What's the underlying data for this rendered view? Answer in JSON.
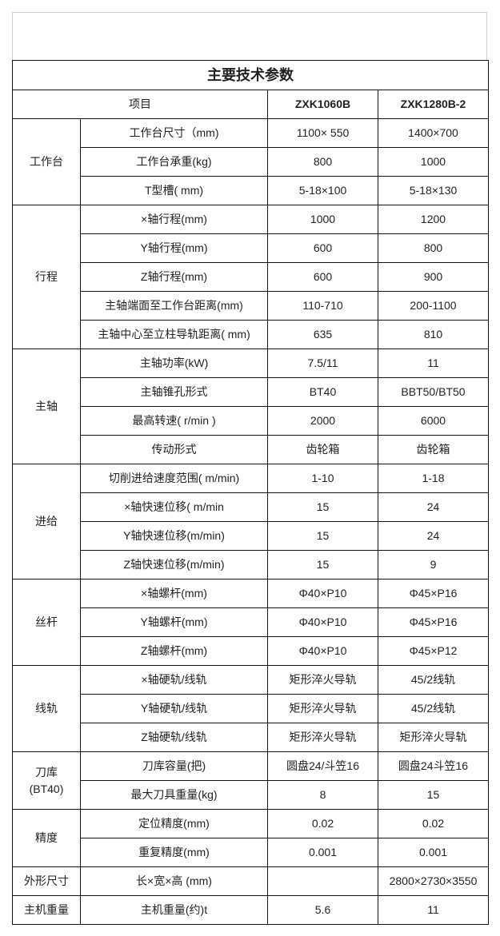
{
  "title": "主要技术参数",
  "header": {
    "item": "项目",
    "model1": "ZXK1060B",
    "model2": "ZXK1280B-2"
  },
  "groups": [
    {
      "name": "工作台",
      "rows": [
        {
          "item": "工作台尺寸（mm)",
          "v1": "1100× 550",
          "v2": "1400×700"
        },
        {
          "item": "工作台承重(kg)",
          "v1": "800",
          "v2": "1000"
        },
        {
          "item": "T型槽( mm)",
          "v1": "5-18×100",
          "v2": "5-18×130"
        }
      ]
    },
    {
      "name": "行程",
      "rows": [
        {
          "item": "×轴行程(mm)",
          "v1": "1000",
          "v2": "1200"
        },
        {
          "item": "Y轴行程(mm)",
          "v1": "600",
          "v2": "800"
        },
        {
          "item": "Z轴行程(mm)",
          "v1": "600",
          "v2": "900"
        },
        {
          "item": "主轴端面至工作台距离(mm)",
          "v1": "110-710",
          "v2": "200-1100"
        },
        {
          "item": "主轴中心至立柱导轨距离( mm)",
          "v1": "635",
          "v2": "810"
        }
      ]
    },
    {
      "name": "主轴",
      "rows": [
        {
          "item": "主轴功率(kW)",
          "v1": "7.5/11",
          "v2": "11"
        },
        {
          "item": "主轴锥孔形式",
          "v1": "BT40",
          "v2": "BBT50/BT50"
        },
        {
          "item": "最高转速( r/min )",
          "v1": "2000",
          "v2": "6000"
        },
        {
          "item": "传动形式",
          "v1": "齿轮箱",
          "v2": "齿轮箱"
        }
      ]
    },
    {
      "name": "进给",
      "rows": [
        {
          "item": "切削进给速度范围( m/min)",
          "v1": "1-10",
          "v2": "1-18"
        },
        {
          "item": "×轴快速位移( m/min",
          "v1": "15",
          "v2": "24"
        },
        {
          "item": "Y轴快速位移(m/min)",
          "v1": "15",
          "v2": "24"
        },
        {
          "item": "Z轴快速位移(m/min)",
          "v1": "15",
          "v2": "9"
        }
      ]
    },
    {
      "name": "丝杆",
      "rows": [
        {
          "item": "×轴螺杆(mm)",
          "v1": "Φ40×P10",
          "v2": "Φ45×P16"
        },
        {
          "item": "Y轴螺杆(mm)",
          "v1": "Φ40×P10",
          "v2": "Φ45×P16"
        },
        {
          "item": "Z轴螺杆(mm)",
          "v1": "Φ40×P10",
          "v2": "Φ45×P12"
        }
      ]
    },
    {
      "name": "线轨",
      "rows": [
        {
          "item": "×轴硬轨/线轨",
          "v1": "矩形淬火导轨",
          "v2": "45/2线轨"
        },
        {
          "item": "Y轴硬轨/线轨",
          "v1": "矩形淬火导轨",
          "v2": "45/2线轨"
        },
        {
          "item": "Z轴硬轨/线轨",
          "v1": "矩形淬火导轨",
          "v2": "矩形淬火导轨"
        }
      ]
    },
    {
      "name": "刀库",
      "sub": "(BT40)",
      "rows": [
        {
          "item": "刀库容量(把)",
          "v1": "圆盘24/斗笠16",
          "v2": "圆盘24斗笠16"
        },
        {
          "item": "最大刀具重量(kg)",
          "v1": "8",
          "v2": "15"
        }
      ]
    },
    {
      "name": "精度",
      "rows": [
        {
          "item": "定位精度(mm)",
          "v1": "0.02",
          "v2": "0.02"
        },
        {
          "item": "重复精度(mm)",
          "v1": "0.001",
          "v2": "0.001"
        }
      ]
    },
    {
      "name": "外形尺寸",
      "rows": [
        {
          "item": "长×宽×高 (mm)",
          "v1": "",
          "v2": "2800×2730×3550"
        }
      ]
    },
    {
      "name": "主机重量",
      "rows": [
        {
          "item": "主机重量(约)t",
          "v1": "5.6",
          "v2": "11"
        }
      ]
    }
  ]
}
